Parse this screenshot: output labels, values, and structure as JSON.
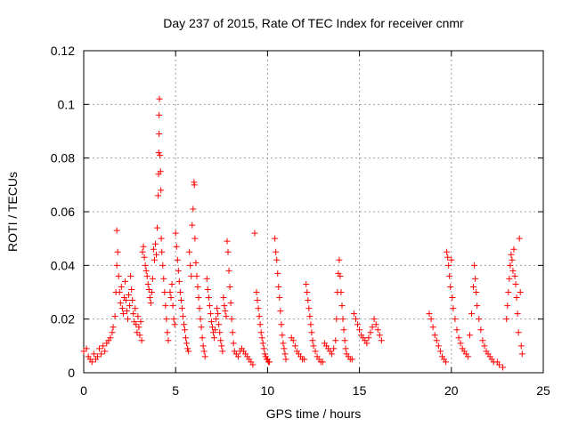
{
  "chart_data": {
    "type": "scatter",
    "title": "Day 237 of 2015, Rate Of TEC Index for receiver cnmr",
    "xlabel": "GPS time / hours",
    "ylabel": "ROTI / TECUs",
    "xlim": [
      0,
      25
    ],
    "ylim": [
      0,
      0.12
    ],
    "xticks": [
      0,
      5,
      10,
      15,
      20,
      25
    ],
    "yticks": [
      0,
      0.02,
      0.04,
      0.06,
      0.08,
      0.1,
      0.12
    ],
    "grid": true,
    "marker": "+",
    "color": "#ff0000",
    "series": [
      {
        "points": [
          [
            0.0,
            0.008
          ],
          [
            0.15,
            0.009
          ],
          [
            0.25,
            0.006
          ],
          [
            0.35,
            0.005
          ],
          [
            0.45,
            0.004
          ],
          [
            0.55,
            0.007
          ],
          [
            0.65,
            0.005
          ],
          [
            0.75,
            0.006
          ],
          [
            0.85,
            0.009
          ],
          [
            0.95,
            0.007
          ],
          [
            1.05,
            0.01
          ],
          [
            1.15,
            0.008
          ],
          [
            1.25,
            0.011
          ],
          [
            1.35,
            0.012
          ],
          [
            1.45,
            0.013
          ],
          [
            1.55,
            0.015
          ],
          [
            1.6,
            0.017
          ],
          [
            1.7,
            0.021
          ],
          [
            1.75,
            0.03
          ],
          [
            1.8,
            0.04
          ],
          [
            1.8,
            0.053
          ],
          [
            1.85,
            0.045
          ],
          [
            1.9,
            0.036
          ],
          [
            1.95,
            0.03
          ],
          [
            2.0,
            0.026
          ],
          [
            2.05,
            0.032
          ],
          [
            2.1,
            0.024
          ],
          [
            2.15,
            0.022
          ],
          [
            2.2,
            0.028
          ],
          [
            2.25,
            0.034
          ],
          [
            2.3,
            0.027
          ],
          [
            2.35,
            0.023
          ],
          [
            2.4,
            0.02
          ],
          [
            2.45,
            0.029
          ],
          [
            2.5,
            0.025
          ],
          [
            2.55,
            0.036
          ],
          [
            2.6,
            0.031
          ],
          [
            2.65,
            0.027
          ],
          [
            2.7,
            0.022
          ],
          [
            2.75,
            0.019
          ],
          [
            2.8,
            0.024
          ],
          [
            2.85,
            0.018
          ],
          [
            2.9,
            0.015
          ],
          [
            2.95,
            0.021
          ],
          [
            3.0,
            0.017
          ],
          [
            3.05,
            0.014
          ],
          [
            3.1,
            0.019
          ],
          [
            3.15,
            0.012
          ],
          [
            3.2,
            0.045
          ],
          [
            3.25,
            0.047
          ],
          [
            3.3,
            0.043
          ],
          [
            3.35,
            0.04
          ],
          [
            3.4,
            0.038
          ],
          [
            3.45,
            0.036
          ],
          [
            3.5,
            0.033
          ],
          [
            3.55,
            0.031
          ],
          [
            3.6,
            0.028
          ],
          [
            3.65,
            0.026
          ],
          [
            3.7,
            0.03
          ],
          [
            3.75,
            0.035
          ],
          [
            3.8,
            0.046
          ],
          [
            3.85,
            0.042
          ],
          [
            3.9,
            0.048
          ],
          [
            3.95,
            0.044
          ],
          [
            4.0,
            0.054
          ],
          [
            4.05,
            0.066
          ],
          [
            4.07,
            0.074
          ],
          [
            4.08,
            0.082
          ],
          [
            4.1,
            0.089
          ],
          [
            4.1,
            0.096
          ],
          [
            4.12,
            0.102
          ],
          [
            4.15,
            0.081
          ],
          [
            4.18,
            0.075
          ],
          [
            4.2,
            0.068
          ],
          [
            4.22,
            0.05
          ],
          [
            4.25,
            0.045
          ],
          [
            4.3,
            0.04
          ],
          [
            4.35,
            0.035
          ],
          [
            4.4,
            0.03
          ],
          [
            4.45,
            0.025
          ],
          [
            4.5,
            0.02
          ],
          [
            4.55,
            0.015
          ],
          [
            4.6,
            0.012
          ],
          [
            4.7,
            0.03
          ],
          [
            4.75,
            0.028
          ],
          [
            4.8,
            0.033
          ],
          [
            4.85,
            0.025
          ],
          [
            4.9,
            0.02
          ],
          [
            4.95,
            0.018
          ],
          [
            5.0,
            0.052
          ],
          [
            5.05,
            0.047
          ],
          [
            5.1,
            0.042
          ],
          [
            5.15,
            0.038
          ],
          [
            5.2,
            0.034
          ],
          [
            5.25,
            0.03
          ],
          [
            5.3,
            0.027
          ],
          [
            5.35,
            0.024
          ],
          [
            5.4,
            0.021
          ],
          [
            5.45,
            0.018
          ],
          [
            5.5,
            0.016
          ],
          [
            5.55,
            0.013
          ],
          [
            5.6,
            0.011
          ],
          [
            5.65,
            0.009
          ],
          [
            5.7,
            0.008
          ],
          [
            5.75,
            0.045
          ],
          [
            5.8,
            0.04
          ],
          [
            5.85,
            0.036
          ],
          [
            5.9,
            0.055
          ],
          [
            5.95,
            0.061
          ],
          [
            6.0,
            0.071
          ],
          [
            6.02,
            0.07
          ],
          [
            6.05,
            0.05
          ],
          [
            6.1,
            0.041
          ],
          [
            6.15,
            0.036
          ],
          [
            6.2,
            0.032
          ],
          [
            6.25,
            0.028
          ],
          [
            6.3,
            0.024
          ],
          [
            6.35,
            0.02
          ],
          [
            6.4,
            0.017
          ],
          [
            6.45,
            0.013
          ],
          [
            6.5,
            0.01
          ],
          [
            6.55,
            0.008
          ],
          [
            6.6,
            0.006
          ],
          [
            6.7,
            0.035
          ],
          [
            6.75,
            0.031
          ],
          [
            6.8,
            0.028
          ],
          [
            6.85,
            0.025
          ],
          [
            6.9,
            0.022
          ],
          [
            6.95,
            0.019
          ],
          [
            7.0,
            0.017
          ],
          [
            7.05,
            0.015
          ],
          [
            7.1,
            0.013
          ],
          [
            7.15,
            0.016
          ],
          [
            7.2,
            0.02
          ],
          [
            7.25,
            0.024
          ],
          [
            7.3,
            0.022
          ],
          [
            7.35,
            0.018
          ],
          [
            7.4,
            0.015
          ],
          [
            7.45,
            0.012
          ],
          [
            7.5,
            0.01
          ],
          [
            7.55,
            0.008
          ],
          [
            7.6,
            0.028
          ],
          [
            7.65,
            0.025
          ],
          [
            7.7,
            0.023
          ],
          [
            7.75,
            0.021
          ],
          [
            7.8,
            0.049
          ],
          [
            7.85,
            0.045
          ],
          [
            7.9,
            0.038
          ],
          [
            7.95,
            0.032
          ],
          [
            8.0,
            0.026
          ],
          [
            8.05,
            0.02
          ],
          [
            8.1,
            0.015
          ],
          [
            8.15,
            0.011
          ],
          [
            8.2,
            0.008
          ],
          [
            8.3,
            0.007
          ],
          [
            8.4,
            0.006
          ],
          [
            8.5,
            0.008
          ],
          [
            8.6,
            0.009
          ],
          [
            8.7,
            0.008
          ],
          [
            8.8,
            0.007
          ],
          [
            8.9,
            0.006
          ],
          [
            9.0,
            0.005
          ],
          [
            9.1,
            0.004
          ],
          [
            9.2,
            0.003
          ],
          [
            9.3,
            0.052
          ],
          [
            9.4,
            0.03
          ],
          [
            9.45,
            0.027
          ],
          [
            9.5,
            0.024
          ],
          [
            9.55,
            0.021
          ],
          [
            9.6,
            0.018
          ],
          [
            9.65,
            0.015
          ],
          [
            9.7,
            0.013
          ],
          [
            9.75,
            0.011
          ],
          [
            9.8,
            0.009
          ],
          [
            9.85,
            0.007
          ],
          [
            9.9,
            0.006
          ],
          [
            9.95,
            0.005
          ],
          [
            10.0,
            0.005
          ],
          [
            10.05,
            0.004
          ],
          [
            10.1,
            0.004
          ],
          [
            10.4,
            0.05
          ],
          [
            10.45,
            0.045
          ],
          [
            10.5,
            0.042
          ],
          [
            10.55,
            0.037
          ],
          [
            10.6,
            0.032
          ],
          [
            10.65,
            0.028
          ],
          [
            10.7,
            0.023
          ],
          [
            10.75,
            0.018
          ],
          [
            10.8,
            0.014
          ],
          [
            10.85,
            0.011
          ],
          [
            10.9,
            0.009
          ],
          [
            10.95,
            0.007
          ],
          [
            11.0,
            0.005
          ],
          [
            11.3,
            0.013
          ],
          [
            11.4,
            0.012
          ],
          [
            11.5,
            0.01
          ],
          [
            11.6,
            0.008
          ],
          [
            11.7,
            0.007
          ],
          [
            11.8,
            0.006
          ],
          [
            11.9,
            0.005
          ],
          [
            12.0,
            0.005
          ],
          [
            12.1,
            0.033
          ],
          [
            12.15,
            0.03
          ],
          [
            12.2,
            0.027
          ],
          [
            12.25,
            0.024
          ],
          [
            12.3,
            0.021
          ],
          [
            12.35,
            0.018
          ],
          [
            12.4,
            0.015
          ],
          [
            12.45,
            0.012
          ],
          [
            12.5,
            0.01
          ],
          [
            12.6,
            0.008
          ],
          [
            12.7,
            0.006
          ],
          [
            12.8,
            0.005
          ],
          [
            12.9,
            0.004
          ],
          [
            13.0,
            0.004
          ],
          [
            13.1,
            0.011
          ],
          [
            13.2,
            0.01
          ],
          [
            13.3,
            0.009
          ],
          [
            13.4,
            0.008
          ],
          [
            13.5,
            0.007
          ],
          [
            13.6,
            0.009
          ],
          [
            13.7,
            0.012
          ],
          [
            13.75,
            0.02
          ],
          [
            13.8,
            0.03
          ],
          [
            13.85,
            0.037
          ],
          [
            13.9,
            0.042
          ],
          [
            13.95,
            0.036
          ],
          [
            14.0,
            0.03
          ],
          [
            14.05,
            0.025
          ],
          [
            14.1,
            0.02
          ],
          [
            14.15,
            0.016
          ],
          [
            14.2,
            0.012
          ],
          [
            14.25,
            0.009
          ],
          [
            14.3,
            0.007
          ],
          [
            14.4,
            0.006
          ],
          [
            14.5,
            0.005
          ],
          [
            14.6,
            0.005
          ],
          [
            14.7,
            0.022
          ],
          [
            14.8,
            0.02
          ],
          [
            14.9,
            0.018
          ],
          [
            15.0,
            0.016
          ],
          [
            15.1,
            0.014
          ],
          [
            15.2,
            0.013
          ],
          [
            15.3,
            0.012
          ],
          [
            15.4,
            0.011
          ],
          [
            15.5,
            0.013
          ],
          [
            15.6,
            0.015
          ],
          [
            15.7,
            0.017
          ],
          [
            15.8,
            0.02
          ],
          [
            15.9,
            0.018
          ],
          [
            16.0,
            0.016
          ],
          [
            16.1,
            0.014
          ],
          [
            16.2,
            0.012
          ],
          [
            18.8,
            0.022
          ],
          [
            18.9,
            0.02
          ],
          [
            19.0,
            0.017
          ],
          [
            19.1,
            0.014
          ],
          [
            19.2,
            0.012
          ],
          [
            19.3,
            0.01
          ],
          [
            19.4,
            0.008
          ],
          [
            19.5,
            0.006
          ],
          [
            19.6,
            0.005
          ],
          [
            19.7,
            0.004
          ],
          [
            19.75,
            0.045
          ],
          [
            19.8,
            0.043
          ],
          [
            19.85,
            0.04
          ],
          [
            19.9,
            0.036
          ],
          [
            19.95,
            0.032
          ],
          [
            20.0,
            0.042
          ],
          [
            20.05,
            0.028
          ],
          [
            20.1,
            0.024
          ],
          [
            20.2,
            0.02
          ],
          [
            20.3,
            0.016
          ],
          [
            20.4,
            0.013
          ],
          [
            20.5,
            0.011
          ],
          [
            20.6,
            0.009
          ],
          [
            20.7,
            0.008
          ],
          [
            20.8,
            0.007
          ],
          [
            20.9,
            0.006
          ],
          [
            21.0,
            0.014
          ],
          [
            21.1,
            0.022
          ],
          [
            21.2,
            0.032
          ],
          [
            21.25,
            0.04
          ],
          [
            21.3,
            0.035
          ],
          [
            21.35,
            0.03
          ],
          [
            21.4,
            0.025
          ],
          [
            21.5,
            0.02
          ],
          [
            21.6,
            0.016
          ],
          [
            21.7,
            0.012
          ],
          [
            21.8,
            0.01
          ],
          [
            21.9,
            0.008
          ],
          [
            22.0,
            0.007
          ],
          [
            22.1,
            0.006
          ],
          [
            22.2,
            0.005
          ],
          [
            22.3,
            0.004
          ],
          [
            22.5,
            0.004
          ],
          [
            22.6,
            0.003
          ],
          [
            22.8,
            0.002
          ],
          [
            23.0,
            0.02
          ],
          [
            23.05,
            0.025
          ],
          [
            23.1,
            0.03
          ],
          [
            23.15,
            0.035
          ],
          [
            23.2,
            0.04
          ],
          [
            23.25,
            0.044
          ],
          [
            23.3,
            0.042
          ],
          [
            23.35,
            0.038
          ],
          [
            23.4,
            0.046
          ],
          [
            23.45,
            0.036
          ],
          [
            23.5,
            0.033
          ],
          [
            23.55,
            0.028
          ],
          [
            23.6,
            0.022
          ],
          [
            23.65,
            0.015
          ],
          [
            23.7,
            0.05
          ],
          [
            23.75,
            0.03
          ],
          [
            23.8,
            0.01
          ],
          [
            23.85,
            0.007
          ]
        ]
      }
    ]
  }
}
